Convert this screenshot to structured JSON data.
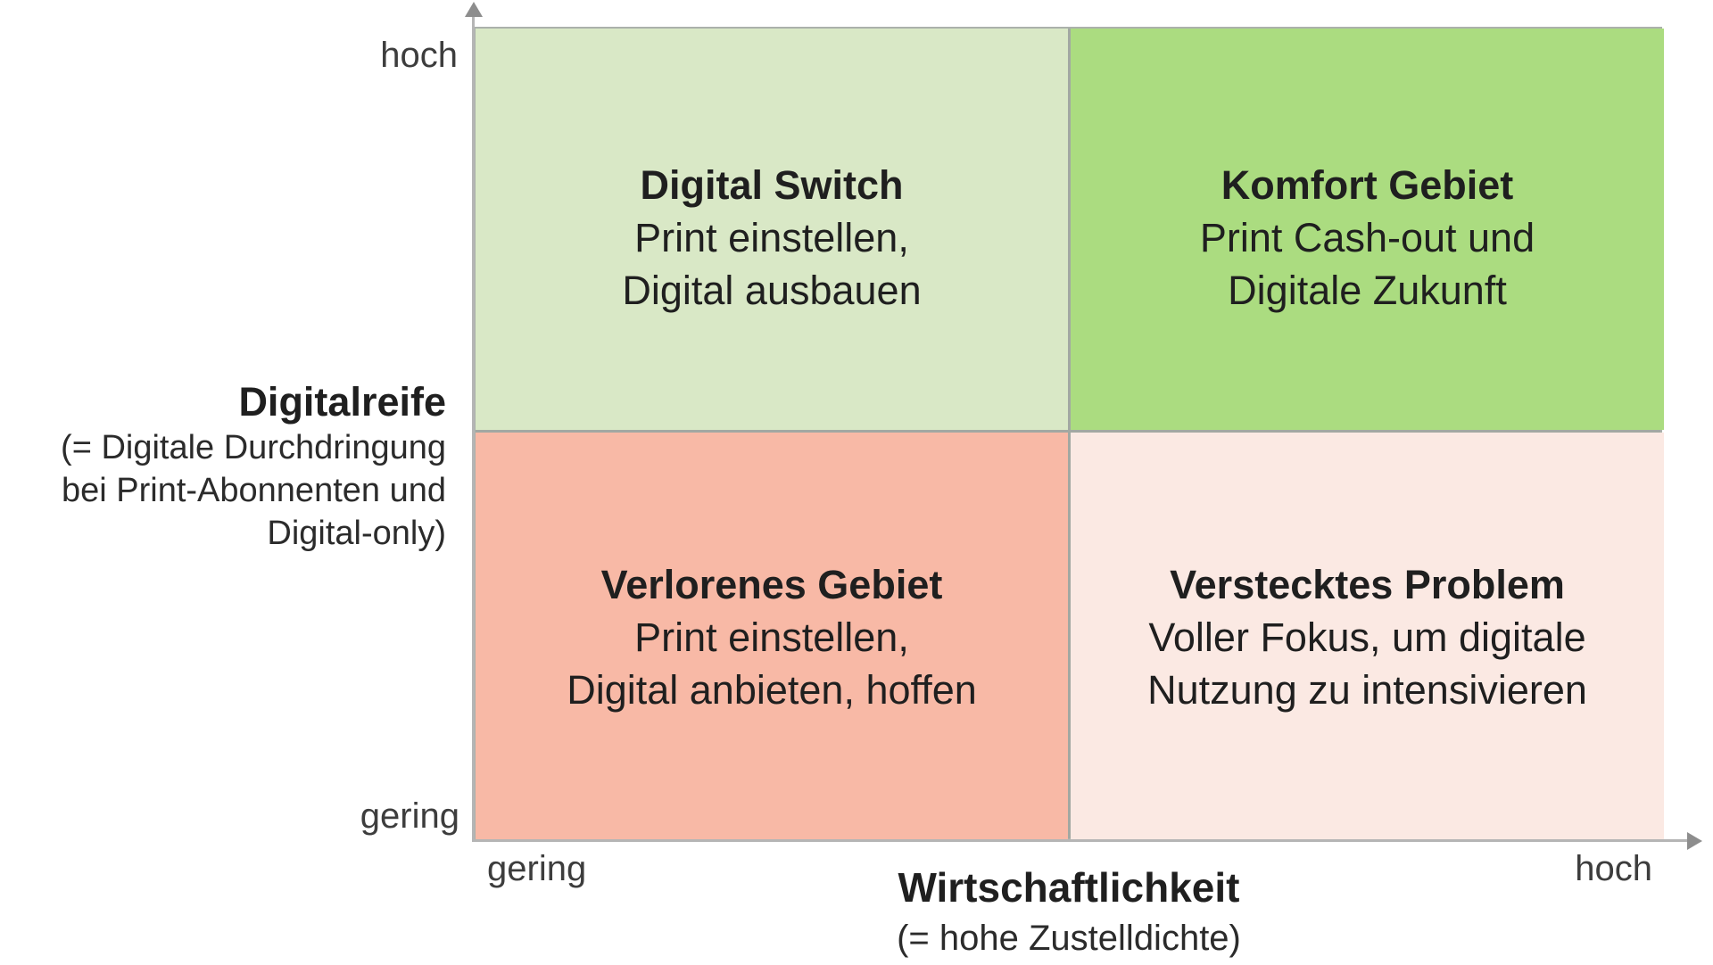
{
  "diagram": {
    "quadrants": {
      "top_left": {
        "title": "Digital Switch",
        "line1": "Print einstellen,",
        "line2": "Digital ausbauen",
        "color": "#d9e8c6"
      },
      "top_right": {
        "title": "Komfort Gebiet",
        "line1": "Print Cash-out und",
        "line2": "Digitale Zukunft",
        "color": "#abdc80"
      },
      "bottom_left": {
        "title": "Verlorenes Gebiet",
        "line1": "Print einstellen,",
        "line2": "Digital anbieten, hoffen",
        "color": "#f8b9a6"
      },
      "bottom_right": {
        "title": "Verstecktes Problem",
        "line1": "Voller Fokus, um digitale",
        "line2": "Nutzung zu intensivieren",
        "color": "#fbe9e3"
      }
    },
    "y_axis": {
      "title": "Digitalreife",
      "subtitle_line1": "(= Digitale Durchdringung",
      "subtitle_line2": "bei Print-Abonnenten und",
      "subtitle_line3": "Digital-only)",
      "tick_top": "hoch",
      "tick_bottom": "gering"
    },
    "x_axis": {
      "title": "Wirtschaftlichkeit",
      "subtitle": "(= hohe Zustelldichte)",
      "tick_left": "gering",
      "tick_right": "hoch"
    },
    "colors": {
      "axis_line": "#b5b5b5",
      "axis_arrow": "#8d8d8d",
      "grid_line": "#a2a8a2",
      "text": "#1f1f1f"
    }
  }
}
